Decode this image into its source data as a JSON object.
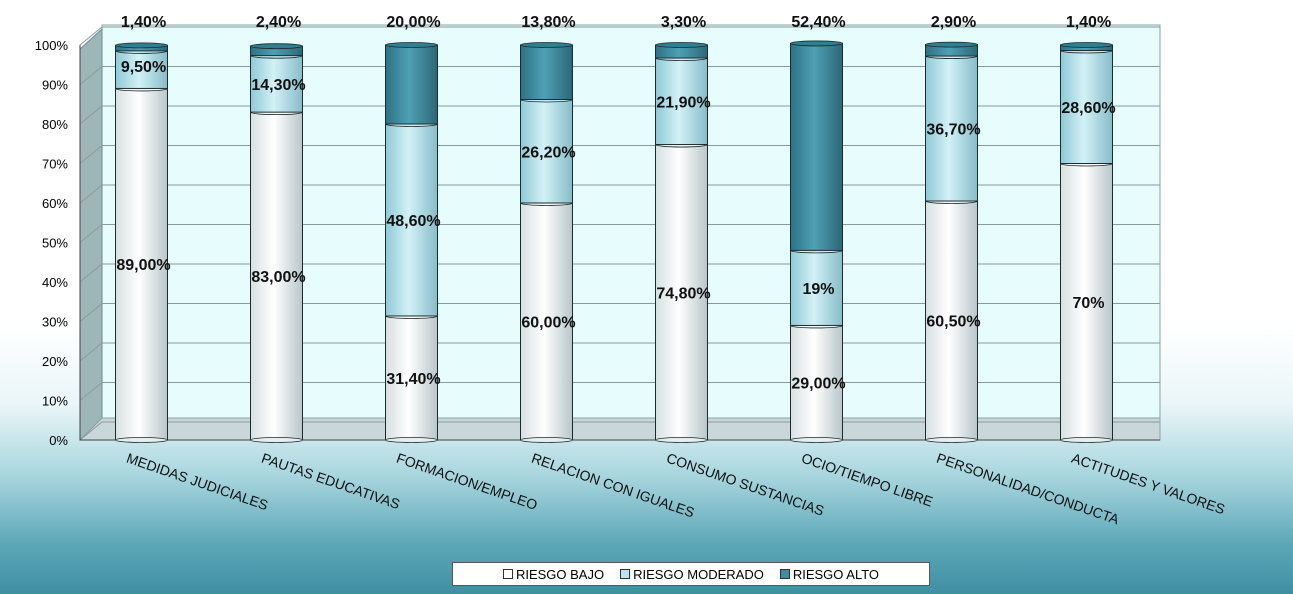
{
  "chart_data": {
    "type": "bar",
    "stacked": true,
    "percent": true,
    "categories": [
      "MEDIDAS JUDICIALES",
      "PAUTAS EDUCATIVAS",
      "FORMACION/EMPLEO",
      "RELACION CON IGUALES",
      "CONSUMO SUSTANCIAS",
      "OCIO/TIEMPO LIBRE",
      "PERSONALIDAD/CONDUCTA",
      "ACTITUDES Y VALORES"
    ],
    "series": [
      {
        "name": "RIESGO BAJO",
        "values": [
          89.0,
          83.0,
          31.4,
          60.0,
          74.8,
          29.0,
          60.5,
          70
        ],
        "labels": [
          "89,00%",
          "83,00%",
          "31,40%",
          "60,00%",
          "74,80%",
          "29,00%",
          "60,50%",
          "70%"
        ],
        "color": "#ffffff"
      },
      {
        "name": "RIESGO MODERADO",
        "values": [
          9.5,
          14.3,
          48.6,
          26.2,
          21.9,
          19,
          36.7,
          28.6
        ],
        "labels": [
          "9,50%",
          "14,30%",
          "48,60%",
          "26,20%",
          "21,90%",
          "19%",
          "36,70%",
          "28,60%"
        ],
        "color": "#b9e6f0"
      },
      {
        "name": "RIESGO ALTO",
        "values": [
          1.4,
          2.4,
          20.0,
          13.8,
          3.3,
          52.4,
          2.9,
          1.4
        ],
        "labels": [
          "1,40%",
          "2,40%",
          "20,00%",
          "13,80%",
          "3,30%",
          "52,40%",
          "2,90%",
          "1,40%"
        ],
        "color": "#3e8da0"
      }
    ],
    "yticks": [
      "0%",
      "10%",
      "20%",
      "30%",
      "40%",
      "50%",
      "60%",
      "70%",
      "80%",
      "90%",
      "100%"
    ],
    "ylim": [
      0,
      100
    ],
    "grid": true,
    "legend_position": "bottom",
    "plot_background": "#e6fcfd",
    "background_colors": [
      "#ffffff",
      "#3f8fa3"
    ]
  }
}
